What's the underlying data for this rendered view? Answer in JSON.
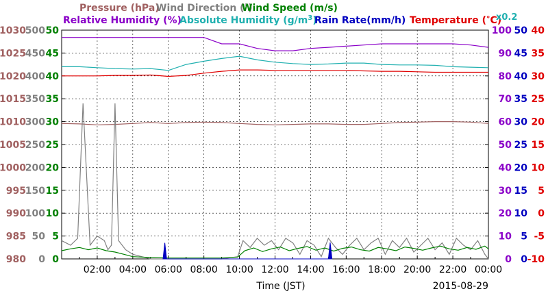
{
  "legend": {
    "pressure": "Pressure (hPa)",
    "wind_direction_pre": "Wind Direction (",
    "degree_symbol": "°",
    "close_paren": ")",
    "wind_speed": "Wind Speed (m/s)",
    "relative_humidity": "Relative Humidity (%)",
    "absolute_humidity_pre": "Absolute Humidity (g/m",
    "superscript_3": "3",
    "rain_rate": "Rain Rate(mm/h)",
    "temperature_pre": "Temperature (",
    "temperature_unit": "C)",
    "rain_scale": "x0.2"
  },
  "colors": {
    "pressure": "#a06060",
    "wind_direction": "#808080",
    "wind_speed": "#008000",
    "relative_humidity": "#8a00c8",
    "absolute_humidity": "#20b0b0",
    "rain_rate": "#0000c0",
    "temperature": "#e00000",
    "axis": "#000000",
    "grid": "#000000"
  },
  "chart_data": {
    "type": "line",
    "date_label": "2015-08-29",
    "xlabel": "Time (JST)",
    "x_ticks": [
      "02:00",
      "04:00",
      "06:00",
      "08:00",
      "10:00",
      "12:00",
      "14:00",
      "16:00",
      "18:00",
      "20:00",
      "22:00",
      "00:00"
    ],
    "x_range_hours": [
      0,
      24
    ],
    "grid": true,
    "y_axes": {
      "pressure": {
        "ticks": [
          980,
          985,
          990,
          995,
          1000,
          1005,
          1010,
          1015,
          1020,
          1025,
          1030
        ],
        "range": [
          980,
          1030
        ]
      },
      "wind_direction": {
        "ticks": [
          0,
          50,
          100,
          150,
          200,
          250,
          300,
          350,
          400,
          450,
          500
        ],
        "range": [
          0,
          500
        ]
      },
      "wind_speed": {
        "ticks": [
          0,
          5,
          10,
          15,
          20,
          25,
          30,
          35,
          40,
          45,
          50
        ],
        "range": [
          0,
          50
        ]
      },
      "relative_humidity": {
        "ticks": [
          0,
          10,
          20,
          30,
          40,
          50,
          60,
          70,
          80,
          90,
          100
        ],
        "range": [
          0,
          100
        ]
      },
      "rain_rate": {
        "ticks": [
          0,
          5,
          10,
          15,
          20,
          25,
          30,
          35,
          40,
          45,
          50
        ],
        "range": [
          0,
          50
        ]
      },
      "temperature": {
        "ticks": [
          -10,
          -5,
          0,
          5,
          10,
          15,
          20,
          25,
          30,
          35,
          40
        ],
        "range": [
          -10,
          40
        ]
      }
    },
    "series": [
      {
        "name": "Relative Humidity (%)",
        "axis": "relative_humidity",
        "x": [
          0,
          1,
          2,
          3,
          4,
          5,
          6,
          7,
          8,
          9,
          10,
          11,
          12,
          13,
          14,
          15,
          16,
          17,
          18,
          19,
          20,
          21,
          22,
          23,
          24
        ],
        "y": [
          96.8,
          96.8,
          96.8,
          96.8,
          96.8,
          96.8,
          96.8,
          96.8,
          96.8,
          94,
          94,
          92,
          91,
          91,
          92,
          92.5,
          93,
          93.5,
          94,
          94,
          94,
          94,
          94,
          93.5,
          92.5
        ]
      },
      {
        "name": "Absolute Humidity (g/m3)",
        "axis": "wind_speed",
        "x": [
          0,
          1,
          2,
          3,
          4,
          5,
          6,
          7,
          8,
          9,
          10,
          11,
          12,
          13,
          14,
          15,
          16,
          17,
          18,
          19,
          20,
          21,
          22,
          23,
          24
        ],
        "y": [
          42,
          42,
          41.8,
          41.6,
          41.5,
          41.6,
          41.2,
          42.5,
          43.2,
          43.8,
          44.3,
          43.5,
          43,
          42.7,
          42.5,
          42.6,
          42.8,
          42.8,
          42.5,
          42.4,
          42.4,
          42.3,
          42,
          41.9,
          41.8
        ]
      },
      {
        "name": "Temperature (°C)",
        "axis": "temperature",
        "x": [
          0,
          1,
          2,
          3,
          4,
          5,
          6,
          7,
          8,
          9,
          10,
          11,
          12,
          13,
          14,
          15,
          16,
          17,
          18,
          19,
          20,
          21,
          22,
          23,
          24
        ],
        "y": [
          30,
          30,
          30,
          30.1,
          30.1,
          30.2,
          29.9,
          30.1,
          30.6,
          31,
          31.3,
          31.3,
          31.2,
          31.2,
          31.2,
          31.2,
          31.2,
          31.1,
          31,
          31,
          30.9,
          30.8,
          30.8,
          30.8,
          30.8
        ]
      },
      {
        "name": "Pressure (hPa)",
        "axis": "pressure",
        "x": [
          0,
          1,
          2,
          3,
          4,
          5,
          6,
          7,
          8,
          9,
          10,
          11,
          12,
          13,
          14,
          15,
          16,
          17,
          18,
          19,
          20,
          21,
          22,
          23,
          24
        ],
        "y": [
          1009.6,
          1009.5,
          1009.3,
          1009.4,
          1009.6,
          1009.8,
          1009.6,
          1009.8,
          1009.9,
          1009.8,
          1009.6,
          1009.4,
          1009.3,
          1009.4,
          1009.5,
          1009.5,
          1009.4,
          1009.4,
          1009.6,
          1009.8,
          1009.9,
          1010,
          1010,
          1009.9,
          1009.6
        ]
      },
      {
        "name": "Wind Direction (°)",
        "axis": "wind_direction",
        "x": [
          0,
          0.5,
          0.9,
          1.2,
          1.6,
          2.0,
          2.4,
          2.6,
          2.8,
          3.0,
          3.2,
          3.6,
          4.0,
          5.0,
          6.0,
          7.0,
          8.0,
          9.0,
          9.9,
          10.2,
          10.6,
          11,
          11.4,
          11.8,
          12.2,
          12.6,
          13,
          13.4,
          13.8,
          14.2,
          14.6,
          15,
          15.4,
          15.8,
          16.2,
          16.6,
          17,
          17.4,
          17.8,
          18.2,
          18.6,
          19,
          19.4,
          19.8,
          20.2,
          20.6,
          21,
          21.4,
          21.8,
          22.2,
          22.6,
          23,
          23.4,
          23.8,
          24
        ],
        "y": [
          40,
          30,
          45,
          340,
          30,
          50,
          40,
          20,
          30,
          340,
          40,
          20,
          10,
          0,
          0,
          0,
          0,
          0,
          5,
          40,
          25,
          45,
          30,
          40,
          20,
          45,
          35,
          10,
          40,
          30,
          5,
          45,
          25,
          10,
          30,
          45,
          20,
          35,
          45,
          10,
          40,
          25,
          45,
          15,
          30,
          45,
          20,
          35,
          10,
          45,
          30,
          20,
          40,
          10,
          0
        ]
      },
      {
        "name": "Wind Speed (m/s)",
        "axis": "wind_speed",
        "x": [
          0,
          0.5,
          1,
          1.5,
          2,
          2.5,
          3,
          3.5,
          4,
          5,
          6,
          7,
          8,
          9,
          9.9,
          10.3,
          10.8,
          11.3,
          11.8,
          12.3,
          12.8,
          13.3,
          13.8,
          14.3,
          14.8,
          15.3,
          15.8,
          16.3,
          16.8,
          17.3,
          17.8,
          18.3,
          18.8,
          19.3,
          19.8,
          20.3,
          20.8,
          21.3,
          21.8,
          22.3,
          22.8,
          23.3,
          23.8,
          24
        ],
        "y": [
          1.8,
          2.2,
          2.5,
          2,
          2.4,
          1.8,
          1.5,
          1,
          0.5,
          0.3,
          0.2,
          0.2,
          0.2,
          0.2,
          0.4,
          1.8,
          2.4,
          1.6,
          2.2,
          2.6,
          1.8,
          2.3,
          2.7,
          1.9,
          2.4,
          1.7,
          2.3,
          2.6,
          2.0,
          1.7,
          2.5,
          2.2,
          1.8,
          2.6,
          2.3,
          1.9,
          2.4,
          2.8,
          2.2,
          1.9,
          2.5,
          2.1,
          2.8,
          2.2
        ]
      },
      {
        "name": "Rain Rate(mm/h)",
        "axis": "rain_rate",
        "x": [
          5.7,
          5.8,
          5.9,
          15.0,
          15.1,
          15.2
        ],
        "y": [
          0,
          3.5,
          0,
          0,
          3.6,
          0
        ]
      }
    ]
  }
}
